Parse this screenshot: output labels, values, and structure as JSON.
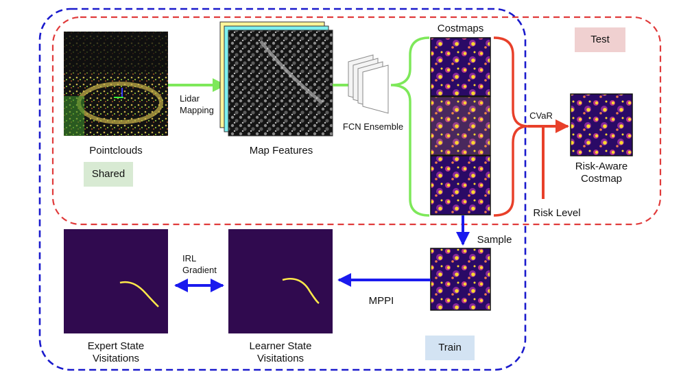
{
  "labels": {
    "pointclouds": "Pointclouds",
    "lidar_mapping_line1": "Lidar",
    "lidar_mapping_line2": "Mapping",
    "map_features": "Map Features",
    "fcn_ensemble": "FCN Ensemble",
    "costmaps": "Costmaps",
    "cvar": "CVaR",
    "risk_aware_line1": "Risk-Aware",
    "risk_aware_line2": "Costmap",
    "risk_level": "Risk Level",
    "sample": "Sample",
    "mppi": "MPPI",
    "irl_gradient_line1": "IRL",
    "irl_gradient_line2": "Gradient",
    "expert_line1": "Expert State",
    "expert_line2": "Visitations",
    "learner_line1": "Learner State",
    "learner_line2": "Visitations"
  },
  "tags": {
    "shared": "Shared",
    "test": "Test",
    "train": "Train"
  },
  "colors": {
    "test_boundary": "#e03a3a",
    "train_boundary": "#1a1acc",
    "shared_tag": "#d8ead3",
    "test_tag": "#f0d0d0",
    "train_tag": "#d3e3f3",
    "green_arrow": "#7ee85a",
    "red_arrow": "#e8402a",
    "blue_arrow": "#1a1aee",
    "visitation_bg": "#300a4f",
    "visitation_path": "#ffe94a",
    "costmap_low": "#2a0a66",
    "costmap_mid": "#b7368a",
    "costmap_high": "#ffd830"
  }
}
